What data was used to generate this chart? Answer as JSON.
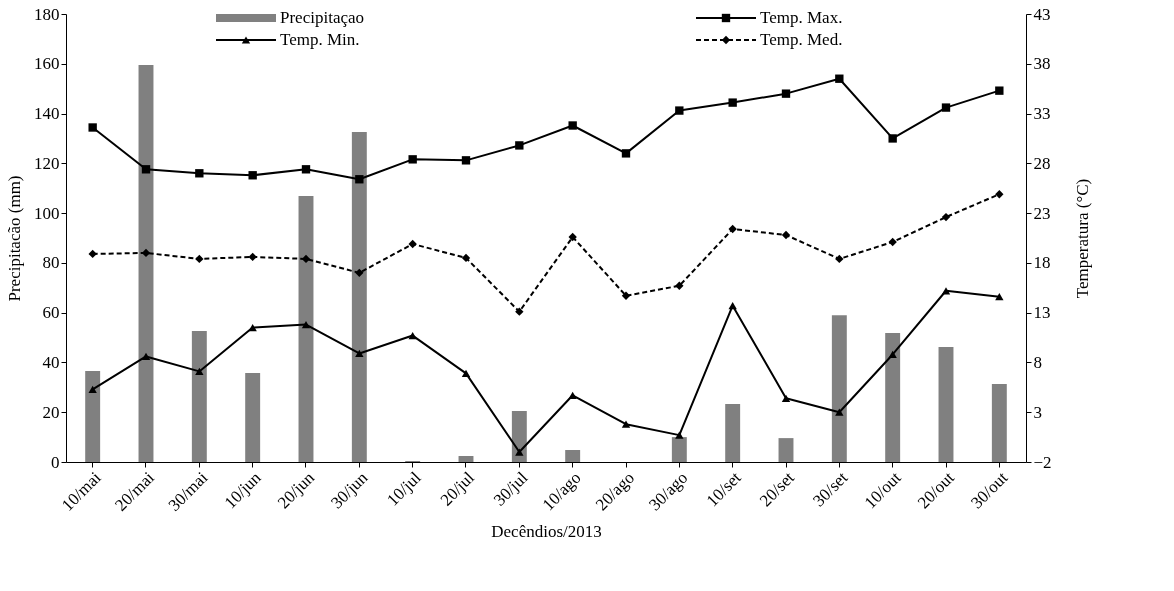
{
  "chart_data": {
    "type": "bar",
    "xlabel": "Decêndios/2013",
    "ylabel": "Precipitacão (mm)",
    "y2label": "Temperatura (°C)",
    "categories": [
      "10/mai",
      "20/mai",
      "30/mai",
      "10/jun",
      "20/jun",
      "30/jun",
      "10/jul",
      "20/jul",
      "30/jul",
      "10/ago",
      "20/ago",
      "30/ago",
      "10/set",
      "20/set",
      "30/set",
      "10/out",
      "20/out",
      "30/out"
    ],
    "series": [
      {
        "name": "Precipitaçao",
        "color": "#808080",
        "values": [
          36.6,
          159.5,
          52.6,
          35.8,
          106.9,
          132.6,
          0.4,
          2.4,
          20.5,
          4.8,
          0,
          10,
          23.3,
          9.6,
          59,
          51.8,
          46.2,
          31.3
        ]
      },
      {
        "name": "Temp. Max.",
        "type": "line",
        "axis": "y2",
        "color": "#000000",
        "marker": "square",
        "line_style": "solid",
        "values": [
          31.6,
          27.4,
          27.0,
          26.8,
          27.4,
          26.4,
          28.4,
          28.3,
          29.8,
          31.8,
          29.0,
          33.3,
          34.1,
          35.0,
          36.5,
          30.5,
          33.6,
          35.3
        ]
      },
      {
        "name": "Temp. Min.",
        "type": "line",
        "axis": "y2",
        "color": "#000000",
        "marker": "triangle",
        "line_style": "solid",
        "values": [
          5.3,
          8.6,
          7.1,
          11.5,
          11.8,
          8.9,
          10.7,
          6.9,
          -1.0,
          4.7,
          1.8,
          0.7,
          13.7,
          4.4,
          3.0,
          8.8,
          15.2,
          14.6
        ]
      },
      {
        "name": "Temp. Med.",
        "type": "line",
        "axis": "y2",
        "color": "#000000",
        "marker": "diamond",
        "line_style": "dashed",
        "values": [
          18.9,
          19.0,
          18.4,
          18.6,
          18.4,
          17.0,
          19.9,
          18.5,
          13.1,
          20.6,
          14.7,
          15.7,
          21.4,
          20.8,
          18.4,
          20.1,
          22.6,
          24.9
        ]
      }
    ],
    "ylim": [
      0,
      180
    ],
    "yticks": [
      0,
      20,
      40,
      60,
      80,
      100,
      120,
      140,
      160,
      180
    ],
    "y2lim": [
      -2,
      43
    ],
    "y2ticks": [
      -2,
      3,
      8,
      13,
      18,
      23,
      28,
      33,
      38,
      43
    ],
    "grid": false,
    "legend": "top"
  }
}
